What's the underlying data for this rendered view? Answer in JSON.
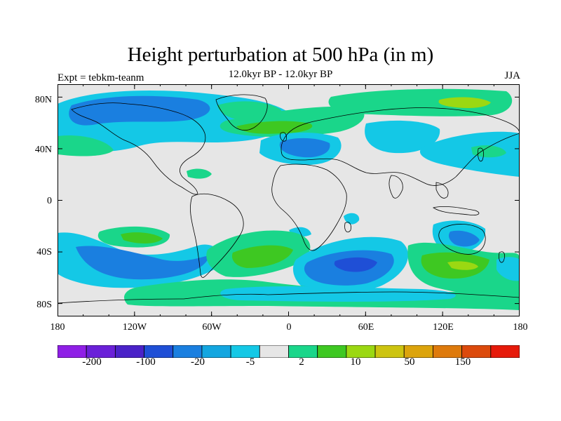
{
  "title": "Height perturbation at 500 hPa (in m)",
  "subtitle": "12.0kyr BP - 12.0kyr BP",
  "left_label": "Expt = tebkm-teanm",
  "right_label": "JJA",
  "map": {
    "lon_ticks": [
      "180",
      "120W",
      "60W",
      "0",
      "60E",
      "120E",
      "180"
    ],
    "lat_ticks": [
      "80N",
      "40N",
      "0",
      "40S",
      "80S"
    ],
    "background_color": "#e6e6e6",
    "coastline_color": "#000000"
  },
  "colorbar": {
    "colors": [
      "#8f1fe6",
      "#6a20d8",
      "#4a22c8",
      "#1f4fd6",
      "#1a7fe0",
      "#13a6e0",
      "#14c8e6",
      "#e6e6e6",
      "#1ad68a",
      "#3ec822",
      "#9bd812",
      "#cdc410",
      "#dca40c",
      "#de7a0c",
      "#dc4a0c",
      "#e61a0a"
    ],
    "labels": [
      "-200",
      "-100",
      "-20",
      "-5",
      "2",
      "10",
      "50",
      "150"
    ]
  }
}
